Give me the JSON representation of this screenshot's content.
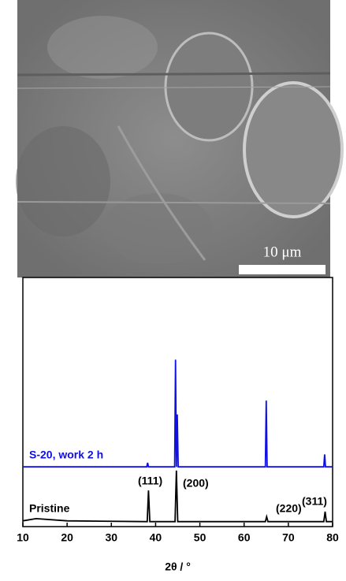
{
  "image": {
    "scale_bar_label": "10 μm"
  },
  "chart_data": {
    "type": "line",
    "x_label": "2θ / °",
    "xlim": [
      10,
      80
    ],
    "xticks": [
      10,
      20,
      30,
      40,
      50,
      60,
      70,
      80
    ],
    "ylim": [
      0,
      100
    ],
    "annotations": [
      "(111)",
      "(200)",
      "(220)",
      "(311)"
    ],
    "series": [
      {
        "name": "S-20, work 2 h",
        "color": "#1010e0",
        "x": [
          10,
          20,
          38,
          38.2,
          38.4,
          44.3,
          44.5,
          44.7,
          44.9,
          45.1,
          64.8,
          65.0,
          65.2,
          78,
          78.2,
          78.4,
          80
        ],
        "values": [
          24,
          24,
          24,
          25.6,
          24,
          24,
          67,
          24,
          45,
          24,
          24,
          50.6,
          24,
          24,
          29,
          24,
          24
        ]
      },
      {
        "name": "Pristine",
        "color": "#000000",
        "x": [
          10,
          13,
          20,
          38.1,
          38.4,
          38.7,
          44.4,
          44.7,
          45.0,
          64.8,
          65.1,
          65.4,
          78,
          78.3,
          78.6,
          80
        ],
        "values": [
          2.3,
          3.2,
          2.3,
          2,
          14.5,
          2,
          2,
          22.5,
          2,
          2,
          4,
          2,
          2,
          6,
          2,
          2
        ]
      }
    ]
  }
}
